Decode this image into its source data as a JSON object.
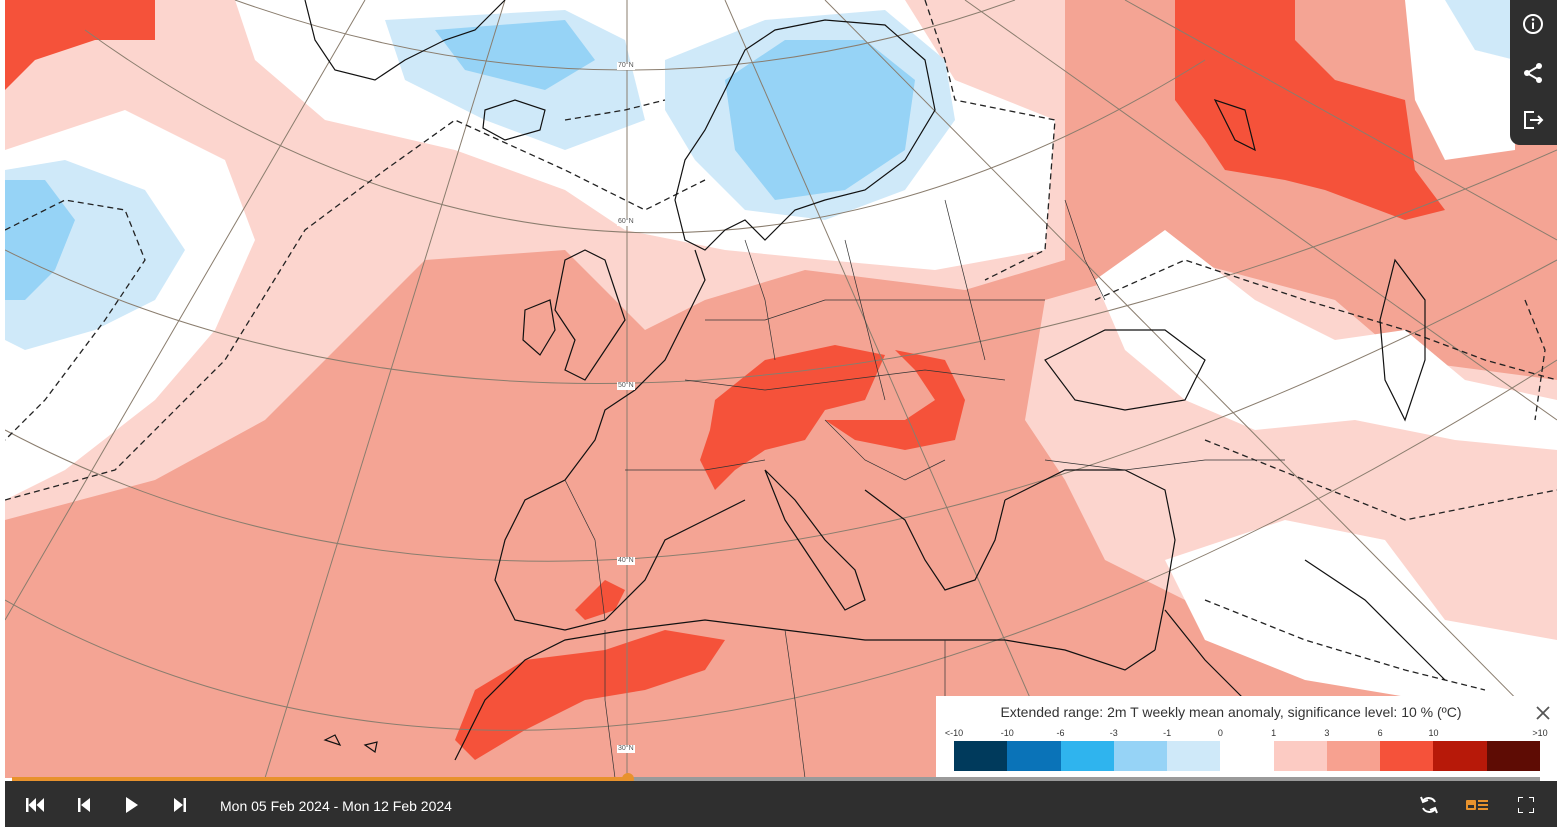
{
  "map": {
    "parallel_labels": [
      "70°N",
      "60°N",
      "50°N",
      "40°N",
      "30°N"
    ]
  },
  "side_tools": [
    {
      "name": "info-icon"
    },
    {
      "name": "share-icon"
    },
    {
      "name": "export-icon"
    }
  ],
  "legend": {
    "title": "Extended range: 2m T weekly mean anomaly, significance level: 10 % (ºC)",
    "ticks": [
      "<-10",
      "-10",
      "-6",
      "-3",
      "-1",
      "0",
      "1",
      "3",
      "6",
      "10",
      ">10"
    ],
    "colors": [
      "#003a5c",
      "#0a73b8",
      "#2fb4ee",
      "#96d3f6",
      "#cfe9f9",
      "#ffffff",
      "#fccbc3",
      "#f7a190",
      "#f5523a",
      "#b71909",
      "#5e0c04"
    ]
  },
  "player": {
    "progress": 0.403,
    "date_range": "Mon 05 Feb 2024 - Mon 12 Feb 2024",
    "accent_color": "#e8922d"
  }
}
